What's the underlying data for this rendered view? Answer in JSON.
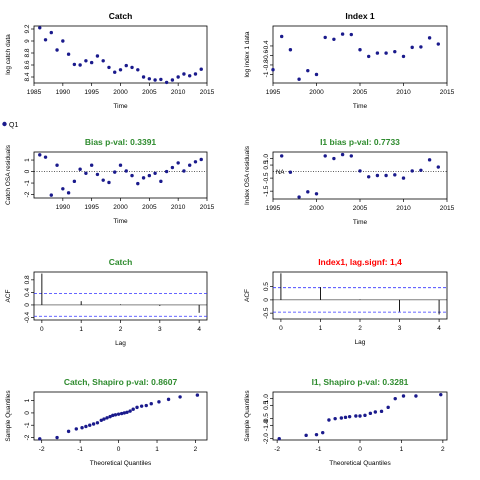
{
  "legend_label": "Q1",
  "colors": {
    "point": "#1a1a8c",
    "title_good": "#2e8b2e",
    "title_bad": "#ff0000",
    "ci": "#3333ff",
    "title": "#000000"
  },
  "chart_data": [
    {
      "id": "catch-fit",
      "type": "scatter",
      "title": "Catch",
      "xlabel": "Time",
      "ylabel": "log catch data",
      "xlim": [
        1985,
        2015
      ],
      "ylim": [
        8.3,
        9.25
      ],
      "xticks": [
        1985,
        1990,
        1995,
        2000,
        2005,
        2010,
        2015
      ],
      "yticks": [
        8.4,
        8.6,
        8.8,
        9.0,
        9.2
      ],
      "x": [
        1986,
        1987,
        1988,
        1989,
        1990,
        1991,
        1992,
        1993,
        1994,
        1995,
        1996,
        1997,
        1998,
        1999,
        2000,
        2001,
        2002,
        2003,
        2004,
        2005,
        2006,
        2007,
        2008,
        2009,
        2010,
        2011,
        2012,
        2013,
        2014
      ],
      "y": [
        9.22,
        9.02,
        9.14,
        8.85,
        9.0,
        8.78,
        8.61,
        8.6,
        8.67,
        8.64,
        8.75,
        8.67,
        8.56,
        8.48,
        8.52,
        8.59,
        8.56,
        8.52,
        8.4,
        8.37,
        8.35,
        8.36,
        8.31,
        8.35,
        8.4,
        8.45,
        8.42,
        8.45,
        8.53
      ]
    },
    {
      "id": "index-fit",
      "type": "scatter",
      "title": "Index 1",
      "xlabel": "Time",
      "ylabel": "log index 1 data",
      "xlim": [
        1995,
        2015
      ],
      "ylim": [
        -1.18,
        0.02
      ],
      "xticks": [
        1995,
        2000,
        2005,
        2010,
        2015
      ],
      "yticks": [
        -1.0,
        -0.8,
        -0.6,
        -0.4
      ],
      "x": [
        1995,
        1996,
        1997,
        1998,
        1999,
        2000,
        2001,
        2002,
        2003,
        2004,
        2005,
        2006,
        2007,
        2008,
        2009,
        2010,
        2011,
        2012,
        2013,
        2014
      ],
      "y": [
        -0.9,
        -0.2,
        -0.48,
        -1.1,
        -0.92,
        -1.0,
        -0.22,
        -0.26,
        -0.15,
        -0.16,
        -0.48,
        -0.62,
        -0.55,
        -0.55,
        -0.52,
        -0.62,
        -0.43,
        -0.42,
        -0.23,
        -0.36
      ]
    },
    {
      "id": "catch-osa",
      "type": "scatter",
      "title": "Bias p-val: 0.3391",
      "xlabel": "Time",
      "ylabel": "Catch OSA residuals",
      "xlim": [
        1985,
        2015
      ],
      "ylim": [
        -2.3,
        1.7
      ],
      "xticks": [
        1990,
        1995,
        2000,
        2005,
        2010,
        2015
      ],
      "yticks": [
        -2,
        -1,
        0,
        1
      ],
      "x": [
        1986,
        1987,
        1988,
        1989,
        1990,
        1991,
        1992,
        1993,
        1994,
        1995,
        1996,
        1997,
        1998,
        1999,
        2000,
        2001,
        2002,
        2003,
        2004,
        2005,
        2006,
        2007,
        2008,
        2009,
        2010,
        2011,
        2012,
        2013,
        2014
      ],
      "y": [
        1.45,
        1.25,
        -2.05,
        0.55,
        -1.5,
        -1.85,
        -0.85,
        0.2,
        -0.15,
        0.55,
        -0.25,
        -0.75,
        -0.95,
        -0.05,
        0.55,
        0.05,
        -0.35,
        -1.05,
        -0.55,
        -0.35,
        -0.15,
        -0.85,
        0.0,
        0.35,
        0.75,
        0.05,
        0.55,
        0.85,
        1.05
      ]
    },
    {
      "id": "index-osa",
      "type": "scatter",
      "title": "I1 bias p-val: 0.7733",
      "xlabel": "Time",
      "ylabel": "Index OSA residuals",
      "xlim": [
        1995,
        2015
      ],
      "ylim": [
        -2.1,
        1.5
      ],
      "xticks": [
        1995,
        2000,
        2005,
        2010,
        2015
      ],
      "yticks": [
        -1.5,
        -0.5,
        0.5,
        1.0
      ],
      "yticklabels": [
        "-1.5",
        "-0.5",
        "0.5",
        "1.0"
      ],
      "annotation": "NA",
      "x": [
        1996,
        1997,
        1998,
        1999,
        2000,
        2001,
        2002,
        2003,
        2004,
        2005,
        2006,
        2007,
        2008,
        2009,
        2010,
        2011,
        2012,
        2013,
        2014
      ],
      "y": [
        1.2,
        -0.05,
        -1.95,
        -1.55,
        -1.7,
        1.2,
        1.0,
        1.3,
        1.2,
        0.05,
        -0.4,
        -0.3,
        -0.3,
        -0.25,
        -0.5,
        0.05,
        0.1,
        0.9,
        0.35
      ]
    },
    {
      "id": "catch-acf",
      "type": "bar",
      "title": "Catch",
      "xlabel": "Lag",
      "ylabel": "ACF",
      "xlim": [
        -0.2,
        4.2
      ],
      "ylim": [
        -0.48,
        1.05
      ],
      "xticks": [
        0,
        1,
        2,
        3,
        4
      ],
      "yticks": [
        -0.4,
        0.0,
        0.4,
        0.8
      ],
      "x": [
        0,
        1,
        2,
        3,
        4
      ],
      "y": [
        1.0,
        0.12,
        0.02,
        -0.03,
        -0.25
      ],
      "ci": 0.36
    },
    {
      "id": "index-acf",
      "type": "bar",
      "title": "Index1, lag.signf: 1,4",
      "xlabel": "Lag",
      "ylabel": "ACF",
      "xlim": [
        -0.2,
        4.2
      ],
      "ylim": [
        -0.72,
        1.05
      ],
      "xticks": [
        0,
        1,
        2,
        3,
        4
      ],
      "yticks": [
        -0.5,
        0.0,
        0.5
      ],
      "x": [
        0,
        1,
        2,
        3,
        4
      ],
      "y": [
        1.0,
        0.48,
        0.02,
        -0.44,
        -0.55
      ],
      "ci": 0.46
    },
    {
      "id": "catch-qq",
      "type": "scatter",
      "title": "Catch, Shapiro p-val: 0.8607",
      "xlabel": "Theoretical Quantiles",
      "ylabel": "Sample Quantiles",
      "xlim": [
        -2.2,
        2.3
      ],
      "ylim": [
        -2.2,
        1.7
      ],
      "xticks": [
        -2,
        -1,
        0,
        1,
        2
      ],
      "yticks": [
        -2,
        -1,
        0,
        1
      ],
      "x": [
        -2.05,
        -1.6,
        -1.3,
        -1.1,
        -0.95,
        -0.85,
        -0.75,
        -0.65,
        -0.55,
        -0.45,
        -0.38,
        -0.3,
        -0.22,
        -0.15,
        -0.08,
        0.0,
        0.08,
        0.15,
        0.22,
        0.3,
        0.38,
        0.48,
        0.6,
        0.72,
        0.85,
        1.05,
        1.3,
        1.6,
        2.05
      ],
      "y": [
        -2.1,
        -2.0,
        -1.5,
        -1.3,
        -1.2,
        -1.1,
        -1.0,
        -0.9,
        -0.8,
        -0.6,
        -0.5,
        -0.4,
        -0.3,
        -0.2,
        -0.15,
        -0.1,
        -0.05,
        0.0,
        0.05,
        0.15,
        0.3,
        0.45,
        0.55,
        0.6,
        0.75,
        0.9,
        1.1,
        1.3,
        1.45
      ]
    },
    {
      "id": "index-qq",
      "type": "scatter",
      "title": "I1, Shapiro p-val: 0.3281",
      "xlabel": "Theoretical Quantiles",
      "ylabel": "Sample Quantiles",
      "xlim": [
        -2.1,
        2.1
      ],
      "ylim": [
        -2.1,
        1.5
      ],
      "xticks": [
        -2,
        -1,
        0,
        1,
        2
      ],
      "yticks": [
        -2.0,
        -1.0,
        -0.5,
        0.5,
        1.0
      ],
      "yticklabels": [
        "-2.0",
        "-1.0",
        "-0.5",
        "0.5",
        "1.0"
      ],
      "x": [
        -1.95,
        -1.3,
        -1.05,
        -0.9,
        -0.75,
        -0.6,
        -0.45,
        -0.35,
        -0.25,
        -0.1,
        0.0,
        0.12,
        0.25,
        0.37,
        0.52,
        0.68,
        0.85,
        1.05,
        1.35,
        1.95
      ],
      "y": [
        -2.0,
        -1.75,
        -1.7,
        -1.55,
        -0.6,
        -0.5,
        -0.45,
        -0.4,
        -0.35,
        -0.3,
        -0.3,
        -0.25,
        -0.1,
        0.0,
        0.05,
        0.35,
        1.0,
        1.2,
        1.2,
        1.3
      ]
    }
  ]
}
